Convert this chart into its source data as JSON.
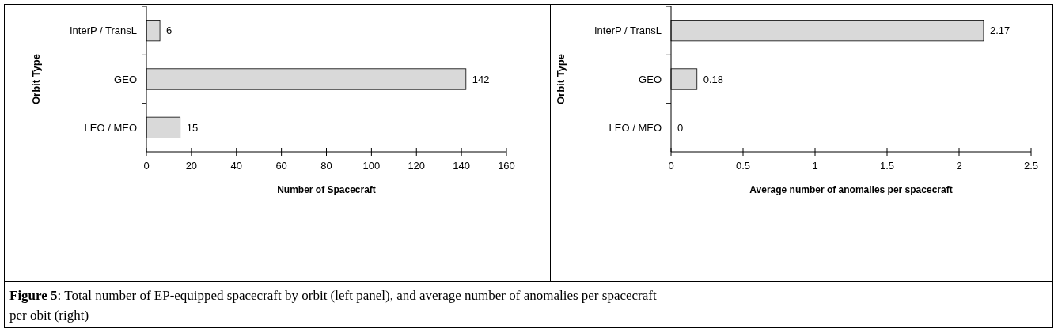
{
  "chart_data": [
    {
      "type": "bar",
      "orientation": "horizontal",
      "categories": [
        "InterP / TransL",
        "GEO",
        "LEO / MEO"
      ],
      "values": [
        6,
        142,
        15
      ],
      "color": "#d9d9d9",
      "xlim": [
        0,
        160
      ],
      "xticks": [
        0,
        20,
        40,
        60,
        80,
        100,
        120,
        140,
        160
      ],
      "xlabel": "Number of Spacecraft",
      "ylabel": "Orbit Type",
      "data_labels": true,
      "grid": false
    },
    {
      "type": "bar",
      "orientation": "horizontal",
      "categories": [
        "InterP / TransL",
        "GEO",
        "LEO / MEO"
      ],
      "values": [
        2.17,
        0.18,
        0
      ],
      "color": "#d9d9d9",
      "xlim": [
        0,
        2.5
      ],
      "xticks": [
        0,
        0.5,
        1,
        1.5,
        2,
        2.5
      ],
      "xlabel": "Average number of anomalies per spacecraft",
      "ylabel": "Orbit Type",
      "data_labels": true,
      "grid": false,
      "annotations": [
        "Figure 5: Total number of EP-equipped spacecraft by orbit (left panel), and average number of anomalies per spacecraft per obit (right)"
      ]
    }
  ]
}
